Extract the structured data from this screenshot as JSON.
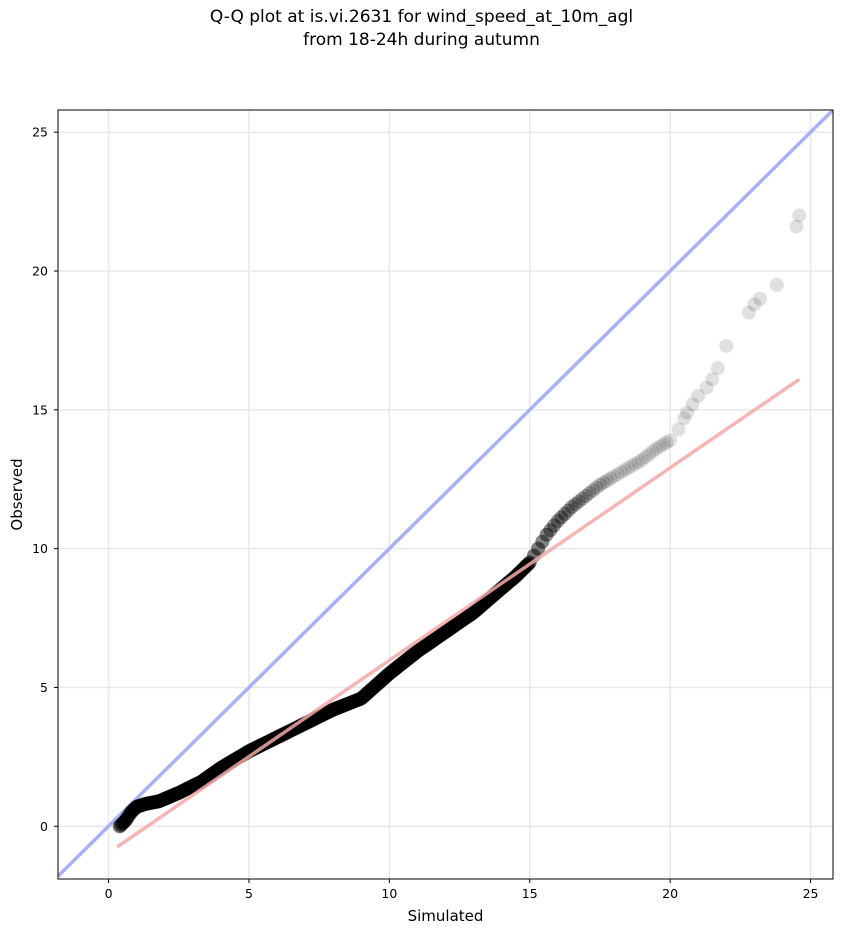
{
  "chart_data": {
    "type": "scatter",
    "title_line1": "Q-Q plot at is.vi.2631 for wind_speed_at_10m_agl",
    "title_line2": "from 18-24h during autumn",
    "xlabel": "Simulated",
    "ylabel": "Observed",
    "xlim": [
      -1.8,
      25.8
    ],
    "ylim": [
      -1.9,
      25.8
    ],
    "xticks": [
      0,
      5,
      10,
      15,
      20,
      25
    ],
    "yticks": [
      0,
      5,
      10,
      15,
      20,
      25
    ],
    "xtick_labels": [
      "0",
      "5",
      "10",
      "15",
      "20",
      "25"
    ],
    "ytick_labels": [
      "0",
      "5",
      "10",
      "15",
      "20",
      "25"
    ],
    "grid": true,
    "reference_line": {
      "name": "1:1",
      "color": "#aab0f5",
      "x": [
        -1.8,
        25.8
      ],
      "y": [
        -1.8,
        25.8
      ]
    },
    "fit_line": {
      "color": "#f5a8a8",
      "x": [
        0.3,
        24.6
      ],
      "y": [
        -0.75,
        16.1
      ]
    },
    "point_color": "#000000",
    "quantiles": {
      "x": [
        0.4,
        0.6,
        0.8,
        1.0,
        1.3,
        1.8,
        2.5,
        3.3,
        4.0,
        5.0,
        6.0,
        7.0,
        8.0,
        9.0,
        10.0,
        11.0,
        12.0,
        13.0,
        13.8,
        14.5,
        15.0,
        15.3,
        15.6,
        16.0,
        16.5,
        17.0,
        17.5,
        18.0,
        18.5,
        19.0,
        19.5,
        20.0,
        20.3,
        20.5,
        20.6,
        20.8,
        21.0,
        21.3,
        21.5,
        21.7,
        22.0,
        22.8,
        23.0,
        23.2,
        23.8,
        24.5,
        24.6
      ],
      "y": [
        0.0,
        0.2,
        0.5,
        0.7,
        0.8,
        0.9,
        1.2,
        1.6,
        2.1,
        2.7,
        3.2,
        3.7,
        4.2,
        4.6,
        5.5,
        6.3,
        7.0,
        7.7,
        8.4,
        9.0,
        9.5,
        10.0,
        10.5,
        11.0,
        11.5,
        11.9,
        12.3,
        12.6,
        12.9,
        13.2,
        13.6,
        13.9,
        14.3,
        14.7,
        14.9,
        15.2,
        15.5,
        15.8,
        16.1,
        16.5,
        17.3,
        18.5,
        18.8,
        19.0,
        19.5,
        21.6,
        22.0
      ]
    }
  }
}
